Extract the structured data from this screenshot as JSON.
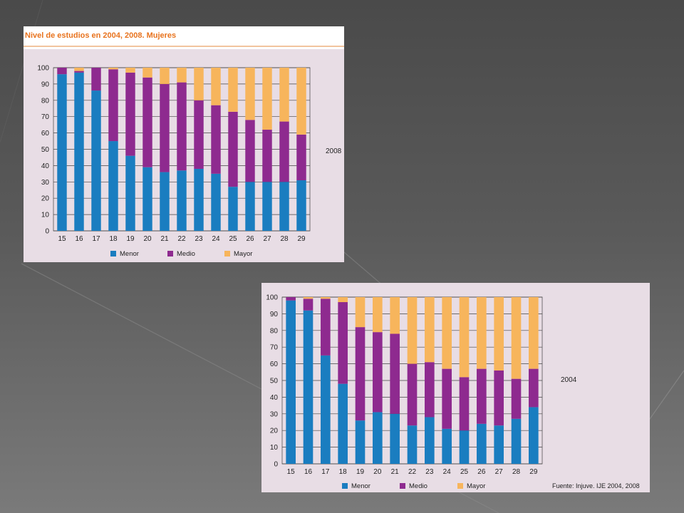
{
  "slide": {
    "background": "#555555"
  },
  "colors": {
    "menor": "#1a7dc0",
    "medio": "#8e2a8f",
    "mayor": "#f7b55c",
    "plot_bg": "#e8dde5",
    "title": "#e8731e"
  },
  "chart_data": [
    {
      "type": "bar",
      "stacked": true,
      "title": "Nivel de estudios en 2004, 2008. Mujeres",
      "side_label": "2008",
      "xlabel": "",
      "ylabel": "",
      "ylim": [
        0,
        100
      ],
      "yticks": [
        "0",
        "10",
        "20",
        "30",
        "40",
        "50",
        "60",
        "70",
        "80",
        "90",
        "100"
      ],
      "categories": [
        "15",
        "16",
        "17",
        "18",
        "19",
        "20",
        "21",
        "22",
        "23",
        "24",
        "25",
        "26",
        "27",
        "28",
        "29"
      ],
      "series": [
        {
          "name": "Menor",
          "color": "#1a7dc0",
          "values": [
            96,
            97,
            86,
            55,
            46,
            39,
            36,
            37,
            38,
            35,
            27,
            30,
            30,
            30,
            31
          ]
        },
        {
          "name": "Medio",
          "color": "#8e2a8f",
          "values": [
            4,
            1,
            14,
            44,
            51,
            55,
            54,
            54,
            42,
            42,
            46,
            38,
            32,
            37,
            28
          ]
        },
        {
          "name": "Mayor",
          "color": "#f7b55c",
          "values": [
            0,
            2,
            0,
            1,
            3,
            6,
            10,
            9,
            20,
            23,
            27,
            32,
            38,
            33,
            41
          ]
        }
      ],
      "grid": true,
      "legend_position": "bottom"
    },
    {
      "type": "bar",
      "stacked": true,
      "title": "",
      "side_label": "2004",
      "source": "Fuente: Injuve. IJE 2004, 2008",
      "xlabel": "",
      "ylabel": "",
      "ylim": [
        0,
        100
      ],
      "yticks": [
        "0",
        "10",
        "20",
        "30",
        "40",
        "50",
        "60",
        "70",
        "80",
        "90",
        "100"
      ],
      "categories": [
        "15",
        "16",
        "17",
        "18",
        "19",
        "20",
        "21",
        "22",
        "23",
        "24",
        "25",
        "26",
        "27",
        "28",
        "29"
      ],
      "series": [
        {
          "name": "Menor",
          "color": "#1a7dc0",
          "values": [
            98,
            92,
            65,
            48,
            26,
            31,
            30,
            23,
            28,
            21,
            20,
            24,
            23,
            27,
            34
          ]
        },
        {
          "name": "Medio",
          "color": "#8e2a8f",
          "values": [
            2,
            7,
            34,
            49,
            56,
            48,
            48,
            37,
            33,
            36,
            32,
            33,
            33,
            24,
            23
          ]
        },
        {
          "name": "Mayor",
          "color": "#f7b55c",
          "values": [
            0,
            1,
            1,
            3,
            18,
            21,
            22,
            40,
            39,
            43,
            48,
            43,
            44,
            49,
            43
          ]
        }
      ],
      "grid": true,
      "legend_position": "bottom"
    }
  ]
}
